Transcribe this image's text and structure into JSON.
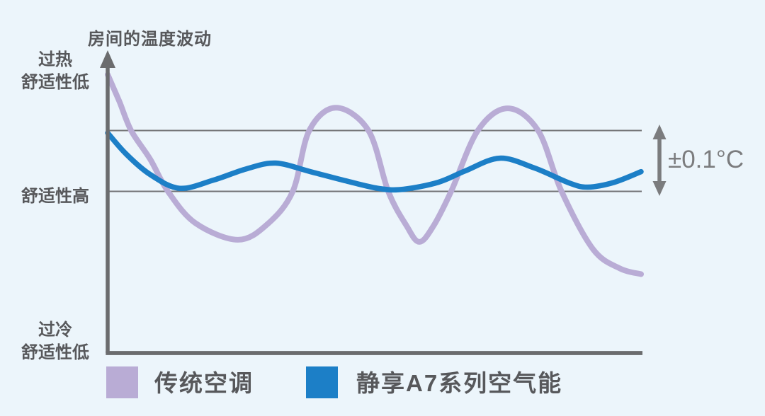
{
  "colors": {
    "background": "#ECF5FB",
    "axis": "#6B6C6E",
    "band_line": "#737476",
    "annotation": "#7B7C7E",
    "label_text": "#57585B"
  },
  "chart_data": {
    "type": "line",
    "title": "房间的温度波动",
    "y_axis_labels": [
      {
        "id": "overheat",
        "lines": [
          "过热",
          "舒适性低"
        ]
      },
      {
        "id": "comfort-high",
        "lines": [
          "舒适性高"
        ]
      },
      {
        "id": "overcool",
        "lines": [
          "过冷",
          "舒适性低"
        ]
      }
    ],
    "band": {
      "upper_value": 0.1,
      "lower_value": -0.1,
      "unit": "°C",
      "annotation": "±0.1°C"
    },
    "legend_position": "bottom",
    "series": [
      {
        "name": "传统空调",
        "color": "#B9ACD5",
        "stroke_width": 8,
        "y_unit": "°C deviation from comfort setpoint",
        "points": [
          [
            0.0,
            0.284
          ],
          [
            0.022,
            0.195
          ],
          [
            0.044,
            0.1
          ],
          [
            0.08,
            0.005
          ],
          [
            0.113,
            -0.1
          ],
          [
            0.165,
            -0.205
          ],
          [
            0.244,
            -0.259
          ],
          [
            0.3,
            -0.207
          ],
          [
            0.347,
            -0.1
          ],
          [
            0.378,
            0.1
          ],
          [
            0.428,
            0.175
          ],
          [
            0.489,
            0.1
          ],
          [
            0.526,
            -0.1
          ],
          [
            0.56,
            -0.212
          ],
          [
            0.584,
            -0.266
          ],
          [
            0.61,
            -0.216
          ],
          [
            0.644,
            -0.1
          ],
          [
            0.694,
            0.1
          ],
          [
            0.75,
            0.173
          ],
          [
            0.807,
            0.1
          ],
          [
            0.851,
            -0.1
          ],
          [
            0.91,
            -0.29
          ],
          [
            0.96,
            -0.353
          ],
          [
            1.0,
            -0.372
          ]
        ]
      },
      {
        "name": "静享A7系列空气能",
        "color": "#1C7FC7",
        "stroke_width": 7.5,
        "y_unit": "°C deviation from comfort setpoint",
        "points": [
          [
            0.0,
            0.092
          ],
          [
            0.035,
            0.022
          ],
          [
            0.08,
            -0.045
          ],
          [
            0.135,
            -0.09
          ],
          [
            0.2,
            -0.062
          ],
          [
            0.26,
            -0.026
          ],
          [
            0.315,
            -0.007
          ],
          [
            0.38,
            -0.035
          ],
          [
            0.45,
            -0.067
          ],
          [
            0.51,
            -0.091
          ],
          [
            0.555,
            -0.093
          ],
          [
            0.62,
            -0.07
          ],
          [
            0.67,
            -0.033
          ],
          [
            0.735,
            0.009
          ],
          [
            0.8,
            -0.023
          ],
          [
            0.865,
            -0.072
          ],
          [
            0.9,
            -0.086
          ],
          [
            0.95,
            -0.07
          ],
          [
            1.0,
            -0.035
          ]
        ]
      }
    ],
    "legend": [
      {
        "label": "传统空调",
        "color": "#B9ACD5"
      },
      {
        "label": "静享A7系列空气能",
        "color": "#1C7FC7"
      }
    ]
  }
}
